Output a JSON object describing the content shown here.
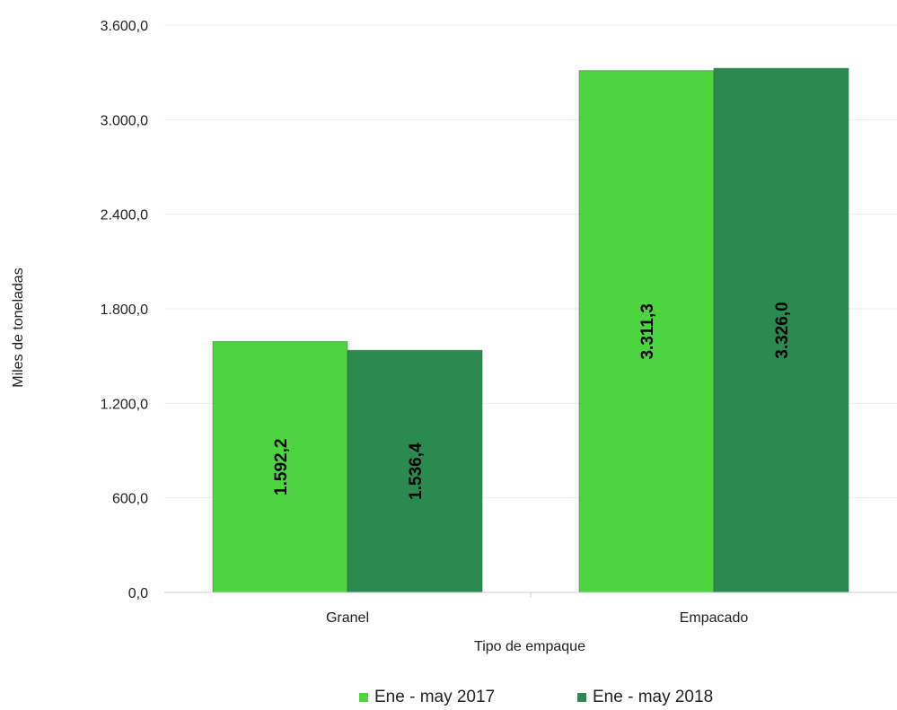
{
  "chart_data": {
    "type": "bar",
    "categories": [
      "Granel",
      "Empacado"
    ],
    "series": [
      {
        "name": "Ene - may 2017",
        "values": [
          1592.2,
          3311.3
        ],
        "labels": [
          "1.592,2",
          "3.311,3"
        ],
        "color": "#4cd441"
      },
      {
        "name": "Ene - may 2018",
        "values": [
          1536.4,
          3326.0
        ],
        "labels": [
          "1.536,4",
          "3.326,0"
        ],
        "color": "#2a8a4f"
      }
    ],
    "yticks": [
      0,
      600,
      1200,
      1800,
      2400,
      3000,
      3600
    ],
    "ytick_labels": [
      "0,0",
      "600,0",
      "1.200,0",
      "1.800,0",
      "2.400,0",
      "3.000,0",
      "3.600,0"
    ],
    "ylim": [
      0,
      3600
    ],
    "xlabel": "Tipo de empaque",
    "ylabel": "Miles de toneladas",
    "title": "",
    "grid": true,
    "legend_position": "bottom"
  }
}
